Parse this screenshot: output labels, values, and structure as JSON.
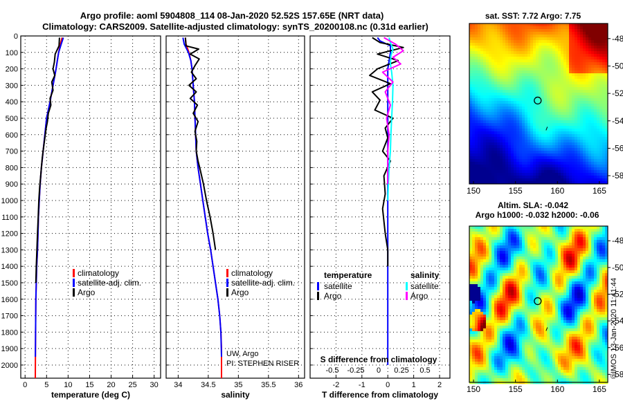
{
  "title_line1": "Argo profile: aoml 5904808_114 08-Jan-2020 52.52S 157.65E (NRT data)",
  "title_line2": "Climatology: CARS2009. Satellite-adjusted climatology: synTS_20200108.nc (0.31d earlier)",
  "depth_ticks": [
    "0",
    "100",
    "200",
    "300",
    "400",
    "500",
    "600",
    "700",
    "800",
    "900",
    "1000",
    "1100",
    "1200",
    "1300",
    "1400",
    "1500",
    "1600",
    "1700",
    "1800",
    "1900",
    "2000"
  ],
  "colors": {
    "climatology": "#ff0000",
    "satellite": "#0000ff",
    "argo": "#000000",
    "sat_salinity": "#00ffff",
    "argo_salinity": "#ff00ff"
  },
  "chart_data": [
    {
      "type": "line",
      "id": "temperature",
      "xlabel": "temperature (deg C)",
      "ylabel": "",
      "xlim": [
        -1,
        31.5
      ],
      "ylim": [
        2080,
        0
      ],
      "xticks": [
        0,
        5,
        10,
        15,
        20,
        25,
        30
      ],
      "xtick_labels": [
        "0",
        "5",
        "10",
        "15",
        "20",
        "25",
        "30"
      ],
      "legend": [
        "climatology",
        "satellite-adj. clim.",
        "Argo"
      ],
      "legend_placement": "lower-right",
      "series": [
        {
          "name": "climatology",
          "key": "climatology",
          "x": [
            8.6,
            8.2,
            7.8,
            7.5,
            7.2,
            6.5,
            5.8,
            5.0,
            4.6,
            4.2,
            3.8,
            3.5,
            3.3,
            3.1,
            3.0,
            2.9,
            2.7,
            2.6,
            2.5,
            2.45,
            2.4,
            2.38
          ],
          "y": [
            10,
            50,
            100,
            150,
            200,
            300,
            400,
            500,
            600,
            700,
            800,
            900,
            1000,
            1100,
            1200,
            1300,
            1400,
            1500,
            1600,
            1800,
            2000,
            2080
          ]
        },
        {
          "name": "satellite-adj. clim.",
          "key": "satellite",
          "x": [
            8.9,
            8.4,
            7.8,
            7.5,
            7.2,
            6.5,
            5.8,
            5.0,
            4.6,
            4.2,
            3.8,
            3.5,
            3.3,
            3.1,
            3.0,
            2.9,
            2.7,
            2.6,
            2.5,
            2.45,
            2.4
          ],
          "y": [
            10,
            50,
            100,
            150,
            200,
            300,
            400,
            500,
            600,
            700,
            800,
            900,
            1000,
            1100,
            1200,
            1300,
            1400,
            1500,
            1600,
            1800,
            1950
          ]
        },
        {
          "name": "Argo",
          "key": "argo",
          "x": [
            8.0,
            7.9,
            7.0,
            6.8,
            6.5,
            6.9,
            6.2,
            6.5,
            5.8,
            6.0,
            5.4,
            5.2,
            4.9,
            4.6,
            4.3,
            4.0,
            3.8,
            3.6,
            3.4,
            3.2,
            3.05,
            2.9,
            2.75,
            2.6,
            2.5
          ],
          "y": [
            10,
            60,
            110,
            160,
            200,
            240,
            280,
            330,
            380,
            420,
            470,
            520,
            560,
            620,
            680,
            740,
            800,
            860,
            920,
            1000,
            1100,
            1200,
            1300,
            1400,
            1500
          ]
        }
      ]
    },
    {
      "type": "line",
      "id": "salinity",
      "xlabel": "salinity",
      "ylabel": "",
      "xlim": [
        33.8,
        36.1
      ],
      "ylim": [
        2080,
        0
      ],
      "xticks": [
        34,
        34.5,
        35,
        35.5,
        36
      ],
      "xtick_labels": [
        "34",
        "34.5",
        "35",
        "35.5",
        "36"
      ],
      "legend": [
        "climatology",
        "satellite-adj. clim.",
        "Argo"
      ],
      "legend_placement": "lower-right",
      "annotation_line1": "UW, Argo",
      "annotation_line2": "PI: STEPHEN RISER",
      "series": [
        {
          "name": "climatology",
          "key": "climatology",
          "x": [
            34.12,
            34.13,
            34.18,
            34.21,
            34.23,
            34.25,
            34.27,
            34.28,
            34.29,
            34.3,
            34.33,
            34.37,
            34.41,
            34.45,
            34.49,
            34.54,
            34.58,
            34.62,
            34.66,
            34.69,
            34.71,
            34.72,
            34.72
          ],
          "y": [
            10,
            50,
            100,
            150,
            200,
            300,
            400,
            500,
            600,
            700,
            800,
            900,
            1000,
            1100,
            1200,
            1300,
            1400,
            1500,
            1600,
            1700,
            1800,
            1900,
            2080
          ]
        },
        {
          "name": "satellite-adj. clim.",
          "key": "satellite",
          "x": [
            34.08,
            34.1,
            34.17,
            34.21,
            34.23,
            34.25,
            34.27,
            34.28,
            34.29,
            34.3,
            34.33,
            34.37,
            34.41,
            34.45,
            34.49,
            34.54,
            34.58,
            34.62,
            34.66,
            34.69,
            34.71,
            34.72
          ],
          "y": [
            10,
            50,
            100,
            150,
            200,
            300,
            400,
            500,
            600,
            700,
            800,
            900,
            1000,
            1100,
            1200,
            1300,
            1400,
            1500,
            1600,
            1700,
            1800,
            1950
          ]
        },
        {
          "name": "Argo",
          "key": "argo",
          "x": [
            34.12,
            34.13,
            34.34,
            34.2,
            34.35,
            34.28,
            34.22,
            34.3,
            34.18,
            34.3,
            34.2,
            34.32,
            34.25,
            34.33,
            34.28,
            34.31,
            34.3,
            34.33,
            34.37,
            34.42,
            34.47,
            34.53,
            34.58,
            34.62
          ],
          "y": [
            10,
            60,
            80,
            110,
            140,
            180,
            220,
            260,
            300,
            340,
            380,
            420,
            470,
            520,
            580,
            640,
            700,
            760,
            820,
            900,
            1000,
            1100,
            1200,
            1300
          ]
        }
      ]
    },
    {
      "type": "line",
      "id": "difference",
      "xlabel": "T difference from climatology",
      "ylabel": "",
      "xlim": [
        -3.0,
        2.4
      ],
      "ylim": [
        2080,
        0
      ],
      "xticks": [
        -2,
        -1,
        0,
        1,
        2
      ],
      "xtick_labels": [
        "-2",
        "-1",
        "0",
        "1",
        "2"
      ],
      "secondary_label": "S difference from climatology",
      "secondary_ticks": [
        -0.5,
        -0.25,
        0,
        0.25,
        0.5
      ],
      "secondary_tick_labels": [
        "-0.5",
        "-0.25",
        "0",
        "0.25",
        "0.5"
      ],
      "legend_temperature_title": "temperature",
      "legend_salinity_title": "salinity",
      "legend_temperature": [
        "satellite",
        "Argo"
      ],
      "legend_salinity": [
        "satellite",
        "Argo"
      ],
      "legend_placement": "lower-center",
      "series": [
        {
          "name": "satellite",
          "group": "temperature",
          "key": "satellite",
          "x": [
            -0.4,
            -0.3,
            0.1,
            0.1,
            0.05,
            0,
            0,
            0,
            0,
            0,
            0,
            0,
            0,
            0,
            0,
            0,
            0,
            0,
            0,
            0,
            0,
            0
          ],
          "y": [
            10,
            30,
            60,
            100,
            150,
            200,
            300,
            400,
            500,
            600,
            700,
            800,
            900,
            1000,
            1100,
            1200,
            1300,
            1400,
            1500,
            1600,
            1800,
            2000
          ]
        },
        {
          "name": "Argo",
          "group": "temperature",
          "key": "argo",
          "x": [
            -0.6,
            -0.3,
            0.6,
            -0.4,
            0.4,
            -0.4,
            -0.7,
            0.1,
            -0.6,
            -0.3,
            -0.5,
            0.2,
            -0.1,
            0,
            -0.2,
            0.1,
            -0.15,
            -0.1,
            -0.2,
            -0.1,
            0,
            0
          ],
          "y": [
            10,
            40,
            70,
            110,
            150,
            200,
            240,
            290,
            340,
            390,
            450,
            500,
            560,
            620,
            700,
            760,
            850,
            960,
            1050,
            1200,
            1300,
            1400
          ]
        },
        {
          "name": "satellite",
          "group": "salinity",
          "key": "sat_salinity",
          "x": [
            0.05,
            0.1,
            0.2,
            0.12,
            0.1,
            0.15,
            0.2,
            0.18,
            0.15,
            0.12,
            0.1,
            0.05,
            0.02,
            0
          ],
          "y": [
            10,
            40,
            80,
            120,
            170,
            220,
            300,
            400,
            500,
            600,
            700,
            800,
            900,
            1000
          ]
        },
        {
          "name": "Argo",
          "group": "salinity",
          "key": "argo_salinity",
          "x": [
            -0.15,
            0.3,
            0.6,
            0.2,
            0.5,
            -0.2,
            0.2,
            -0.1,
            0.1,
            -0.05,
            0.05,
            0,
            0,
            0
          ],
          "y": [
            10,
            50,
            90,
            130,
            170,
            220,
            280,
            340,
            420,
            500,
            600,
            700,
            800,
            900
          ]
        }
      ]
    },
    {
      "type": "heatmap",
      "id": "sst_map",
      "title": "sat. SST: 7.72 Argo: 7.75",
      "xlim": [
        149.5,
        166
      ],
      "ylim": [
        -58.6,
        -46.9
      ],
      "xticks": [
        150,
        155,
        160,
        165
      ],
      "xtick_labels": [
        "150",
        "155",
        "160",
        "165"
      ],
      "yticks": [
        -48,
        -50,
        -52,
        -54,
        -56,
        -58
      ],
      "ytick_labels": [
        "-48",
        "-50",
        "-52",
        "-54",
        "-56",
        "-58"
      ],
      "marker": {
        "lon": 157.65,
        "lat": -52.52
      },
      "colormap": [
        "#00008f",
        "#0000ff",
        "#0080ff",
        "#00ffff",
        "#80ff80",
        "#ffff00",
        "#ff8000",
        "#ff0000",
        "#800000"
      ],
      "value_range": [
        4,
        12
      ]
    },
    {
      "type": "heatmap",
      "id": "sla_map",
      "title": "Altim. SLA: -0.042",
      "subtitle": "Argo h1000: -0.032 h2000: -0.06",
      "xlim": [
        149.5,
        166
      ],
      "ylim": [
        -58.6,
        -46.9
      ],
      "xticks": [
        150,
        155,
        160,
        165
      ],
      "xtick_labels": [
        "150",
        "155",
        "160",
        "165"
      ],
      "yticks": [
        -48,
        -50,
        -52,
        -54,
        -56,
        -58
      ],
      "ytick_labels": [
        "-48",
        "-50",
        "-52",
        "-54",
        "-56",
        "-58"
      ],
      "marker": {
        "lon": 157.65,
        "lat": -52.52
      },
      "colormap": [
        "#00008f",
        "#0000ff",
        "#0080ff",
        "#00ffff",
        "#80ff80",
        "#ffff00",
        "#ff8000",
        "#ff0000",
        "#800000"
      ],
      "value_range": [
        -0.3,
        0.3
      ]
    }
  ],
  "credit": "©IMOS 13-Jan-2020 11:41:44"
}
